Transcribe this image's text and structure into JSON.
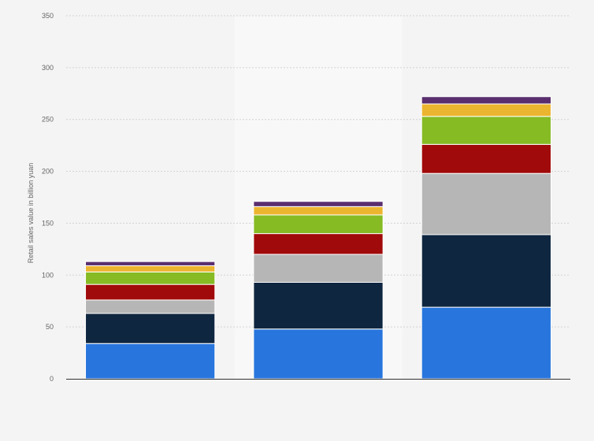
{
  "chart_data": {
    "type": "bar",
    "stacked": true,
    "categories": [
      "",
      "",
      ""
    ],
    "series": [
      {
        "color": "#2876dd",
        "values": [
          34,
          48,
          69
        ]
      },
      {
        "color": "#0f2640",
        "values": [
          29,
          45,
          70
        ]
      },
      {
        "color": "#b6b6b6",
        "values": [
          13,
          27,
          59
        ]
      },
      {
        "color": "#a10a0a",
        "values": [
          15,
          20,
          28
        ]
      },
      {
        "color": "#86bb24",
        "values": [
          12,
          18,
          27
        ]
      },
      {
        "color": "#ecb52f",
        "values": [
          6,
          8,
          12
        ]
      },
      {
        "color": "#5a2e6e",
        "values": [
          4,
          5,
          7
        ]
      }
    ],
    "ylabel": "Retail sales value in billion yuan",
    "ylim": [
      0,
      350
    ],
    "yticks": [
      "0",
      "50",
      "100",
      "150",
      "200",
      "250",
      "300",
      "350"
    ],
    "grid": true,
    "highlight_category_index": 1,
    "highlight_color": "#f8f8f8"
  }
}
